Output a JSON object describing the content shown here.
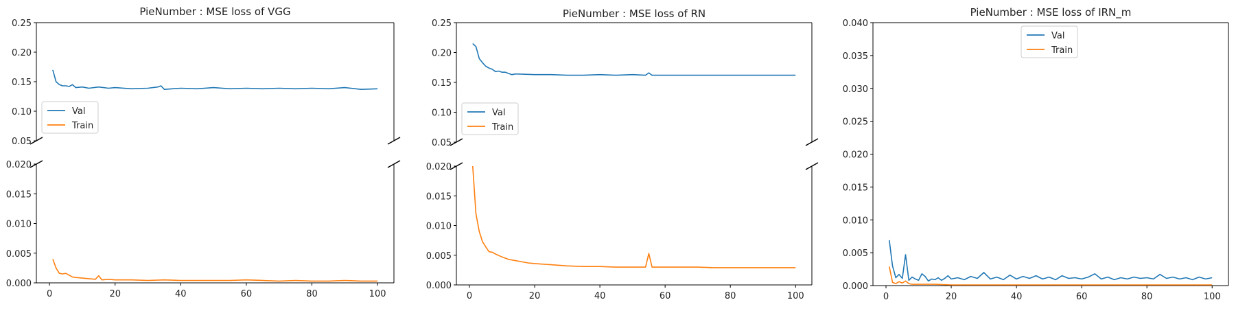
{
  "colors": {
    "val": "#1f77b4",
    "train": "#ff7f0e"
  },
  "chart_data": [
    {
      "type": "line",
      "title": "PieNumber : MSE loss of VGG",
      "broken_axis": true,
      "xlim": [
        -4,
        105
      ],
      "xticks": [
        0,
        20,
        40,
        60,
        80,
        100
      ],
      "xtick_labels": [
        "0",
        "20",
        "40",
        "60",
        "80",
        "100"
      ],
      "top_ylim": [
        0.05,
        0.25
      ],
      "top_yticks": [
        0.05,
        0.1,
        0.15,
        0.2,
        0.25
      ],
      "top_ytick_labels": [
        "0.05",
        "0.10",
        "0.15",
        "0.20",
        "0.25"
      ],
      "bottom_ylim": [
        0.0,
        0.02
      ],
      "bottom_yticks": [
        0.0,
        0.005,
        0.01,
        0.015,
        0.02
      ],
      "bottom_ytick_labels": [
        "0.000",
        "0.005",
        "0.010",
        "0.015",
        "0.020"
      ],
      "legend": {
        "entries": [
          "Val",
          "Train"
        ],
        "location": "center-left of upper panel"
      },
      "series": [
        {
          "name": "Val",
          "x": [
            1,
            2,
            3,
            4,
            5,
            6,
            7,
            8,
            10,
            12,
            15,
            18,
            20,
            25,
            30,
            33,
            34,
            35,
            40,
            45,
            50,
            55,
            60,
            65,
            70,
            75,
            80,
            85,
            90,
            95,
            100
          ],
          "y": [
            0.17,
            0.15,
            0.145,
            0.143,
            0.143,
            0.142,
            0.145,
            0.14,
            0.141,
            0.139,
            0.141,
            0.139,
            0.14,
            0.138,
            0.139,
            0.141,
            0.143,
            0.137,
            0.139,
            0.138,
            0.14,
            0.138,
            0.139,
            0.138,
            0.139,
            0.138,
            0.139,
            0.138,
            0.14,
            0.137,
            0.138
          ]
        },
        {
          "name": "Train",
          "x": [
            1,
            2,
            3,
            4,
            5,
            6,
            7,
            8,
            10,
            12,
            14,
            15,
            16,
            18,
            20,
            25,
            30,
            35,
            40,
            45,
            50,
            55,
            60,
            65,
            70,
            75,
            80,
            85,
            90,
            95,
            100
          ],
          "y": [
            0.004,
            0.0025,
            0.0016,
            0.0015,
            0.0016,
            0.0013,
            0.001,
            0.0009,
            0.0008,
            0.0007,
            0.0006,
            0.0012,
            0.0005,
            0.0006,
            0.0005,
            0.0005,
            0.0004,
            0.0005,
            0.0004,
            0.0004,
            0.0004,
            0.0004,
            0.0005,
            0.0004,
            0.0003,
            0.0004,
            0.0003,
            0.0003,
            0.0004,
            0.0003,
            0.0003
          ]
        }
      ]
    },
    {
      "type": "line",
      "title": "PieNumber : MSE loss of RN",
      "broken_axis": true,
      "xlim": [
        -4,
        105
      ],
      "xticks": [
        0,
        20,
        40,
        60,
        80,
        100
      ],
      "xtick_labels": [
        "0",
        "20",
        "40",
        "60",
        "80",
        "100"
      ],
      "top_ylim": [
        0.05,
        0.25
      ],
      "top_yticks": [
        0.05,
        0.1,
        0.15,
        0.2,
        0.25
      ],
      "top_ytick_labels": [
        "0.05",
        "0.10",
        "0.15",
        "0.20",
        "0.25"
      ],
      "bottom_ylim": [
        0.0,
        0.02
      ],
      "bottom_yticks": [
        0.0,
        0.005,
        0.01,
        0.015,
        0.02
      ],
      "bottom_ytick_labels": [
        "0.000",
        "0.005",
        "0.010",
        "0.015",
        "0.020"
      ],
      "legend": {
        "entries": [
          "Val",
          "Train"
        ],
        "location": "lower-left of upper panel"
      },
      "series": [
        {
          "name": "Val",
          "x": [
            1,
            2,
            3,
            4,
            5,
            6,
            7,
            8,
            9,
            10,
            11,
            12,
            13,
            14,
            15,
            20,
            25,
            30,
            35,
            40,
            45,
            50,
            54,
            55,
            56,
            60,
            65,
            70,
            75,
            80,
            85,
            90,
            95,
            100
          ],
          "y": [
            0.215,
            0.21,
            0.19,
            0.183,
            0.177,
            0.174,
            0.172,
            0.168,
            0.169,
            0.167,
            0.167,
            0.165,
            0.163,
            0.164,
            0.164,
            0.163,
            0.163,
            0.162,
            0.162,
            0.163,
            0.162,
            0.163,
            0.162,
            0.166,
            0.162,
            0.162,
            0.162,
            0.162,
            0.162,
            0.162,
            0.162,
            0.162,
            0.162,
            0.162
          ]
        },
        {
          "name": "Train",
          "x": [
            1,
            2,
            3,
            4,
            5,
            6,
            7,
            8,
            10,
            12,
            15,
            18,
            20,
            25,
            30,
            35,
            40,
            45,
            50,
            54,
            55,
            56,
            60,
            65,
            70,
            75,
            80,
            85,
            90,
            95,
            100
          ],
          "y": [
            0.02,
            0.012,
            0.009,
            0.0073,
            0.0064,
            0.0056,
            0.0055,
            0.0052,
            0.0047,
            0.0043,
            0.004,
            0.0037,
            0.0036,
            0.0034,
            0.0032,
            0.0031,
            0.0031,
            0.003,
            0.003,
            0.003,
            0.0053,
            0.003,
            0.003,
            0.003,
            0.003,
            0.0029,
            0.0029,
            0.0029,
            0.0029,
            0.0029,
            0.0029
          ]
        }
      ]
    },
    {
      "type": "line",
      "title": "PieNumber : MSE loss of IRN_m",
      "broken_axis": false,
      "xlim": [
        -4,
        105
      ],
      "xticks": [
        0,
        20,
        40,
        60,
        80,
        100
      ],
      "xtick_labels": [
        "0",
        "20",
        "40",
        "60",
        "80",
        "100"
      ],
      "ylim": [
        0.0,
        0.04
      ],
      "yticks": [
        0.0,
        0.005,
        0.01,
        0.015,
        0.02,
        0.025,
        0.03,
        0.035,
        0.04
      ],
      "ytick_labels": [
        "0.000",
        "0.005",
        "0.010",
        "0.015",
        "0.020",
        "0.025",
        "0.030",
        "0.035",
        "0.040"
      ],
      "legend": {
        "entries": [
          "Val",
          "Train"
        ],
        "location": "upper-center"
      },
      "series": [
        {
          "name": "Val",
          "x": [
            1,
            2,
            3,
            4,
            5,
            6,
            7,
            8,
            9,
            10,
            11,
            12,
            13,
            14,
            15,
            16,
            17,
            18,
            19,
            20,
            22,
            24,
            26,
            28,
            30,
            32,
            34,
            36,
            38,
            40,
            42,
            44,
            46,
            48,
            50,
            52,
            54,
            56,
            58,
            60,
            62,
            64,
            66,
            68,
            70,
            72,
            74,
            76,
            78,
            80,
            82,
            84,
            86,
            88,
            90,
            92,
            94,
            96,
            98,
            100
          ],
          "y": [
            0.0069,
            0.003,
            0.0012,
            0.0017,
            0.0011,
            0.0047,
            0.0008,
            0.0013,
            0.001,
            0.0008,
            0.0018,
            0.0014,
            0.0007,
            0.001,
            0.0009,
            0.0012,
            0.0008,
            0.0011,
            0.0015,
            0.001,
            0.0012,
            0.0009,
            0.0014,
            0.0011,
            0.002,
            0.001,
            0.0013,
            0.0009,
            0.0016,
            0.001,
            0.0014,
            0.0011,
            0.0015,
            0.001,
            0.0013,
            0.0009,
            0.0015,
            0.0011,
            0.0012,
            0.001,
            0.0013,
            0.0018,
            0.001,
            0.0013,
            0.0009,
            0.0012,
            0.001,
            0.0013,
            0.0011,
            0.0012,
            0.001,
            0.0017,
            0.0011,
            0.0013,
            0.001,
            0.0012,
            0.0009,
            0.0013,
            0.001,
            0.0012
          ]
        },
        {
          "name": "Train",
          "x": [
            1,
            2,
            3,
            4,
            5,
            6,
            7,
            8,
            10,
            12,
            15,
            20,
            25,
            30,
            40,
            50,
            60,
            70,
            80,
            90,
            100
          ],
          "y": [
            0.0029,
            0.0005,
            0.0003,
            0.0006,
            0.0004,
            0.0007,
            0.0003,
            0.0002,
            0.0002,
            0.0002,
            0.0002,
            0.0001,
            0.0001,
            0.0001,
            0.0001,
            0.0001,
            0.0001,
            0.0001,
            0.0001,
            0.0001,
            0.0001
          ]
        }
      ]
    }
  ]
}
